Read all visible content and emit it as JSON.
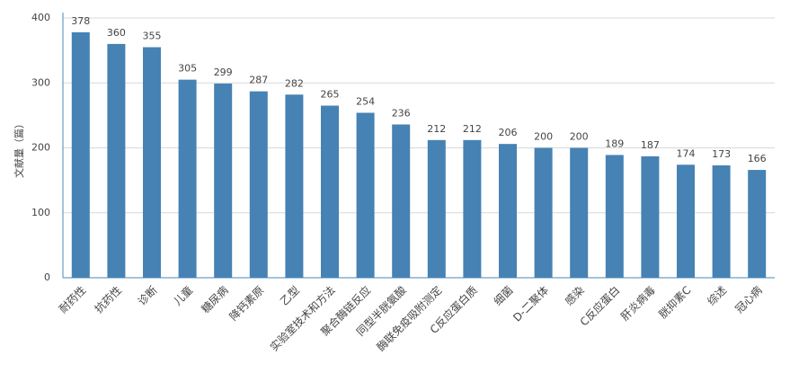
{
  "chart_data": {
    "type": "bar",
    "y_label": "文献量（篇）",
    "categories": [
      "耐药性",
      "抗药性",
      "诊断",
      "儿童",
      "糖尿病",
      "降钙素原",
      "乙型",
      "实验室技术和方法",
      "聚合酶链反应",
      "同型半胱氨酸",
      "酶联免疫吸附测定",
      "C反应蛋白质",
      "细菌",
      "D-二聚体",
      "感染",
      "C反应蛋白",
      "肝炎病毒",
      "胱抑素C",
      "综述",
      "冠心病"
    ],
    "values": [
      378,
      360,
      355,
      305,
      299,
      287,
      282,
      265,
      254,
      236,
      212,
      212,
      206,
      200,
      200,
      189,
      187,
      174,
      173,
      166
    ],
    "color": "#4682b4",
    "ylim": [
      0,
      400
    ],
    "yticks": [
      0,
      100,
      200,
      300,
      400
    ],
    "grid": true
  }
}
